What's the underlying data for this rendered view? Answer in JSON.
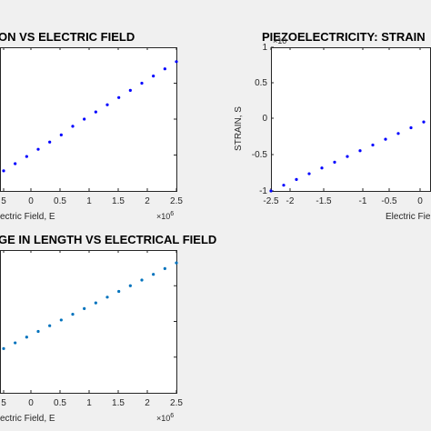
{
  "chart_data": [
    {
      "type": "scatter",
      "title": "ON VS ELECTRIC FIELD",
      "xlabel": "ectric Field, E",
      "x_exponent": "×10",
      "x_exponent_power": "6",
      "xticks": [
        "5",
        "0",
        "0.5",
        "1",
        "1.5",
        "2",
        "2.5"
      ],
      "xlim": [
        -0.5,
        2.5
      ],
      "x": [
        -0.5,
        -0.3,
        -0.1,
        0.1,
        0.3,
        0.5,
        0.7,
        0.9,
        1.1,
        1.3,
        1.5,
        1.7,
        1.9,
        2.1,
        2.3,
        2.5
      ],
      "y": [
        0.14,
        0.19,
        0.24,
        0.29,
        0.34,
        0.39,
        0.45,
        0.5,
        0.55,
        0.6,
        0.65,
        0.7,
        0.75,
        0.8,
        0.85,
        0.9
      ],
      "ylim": [
        0,
        1
      ],
      "color": "#0000ff"
    },
    {
      "type": "scatter",
      "title": "PIEZOELECTRICITY: STRAIN",
      "xlabel": "Electric Field",
      "ylabel": "STRAIN, S",
      "y_exponent": "×10",
      "xticks": [
        "-2.5",
        "-2",
        "-1.5",
        "-1",
        "-0.5",
        "0"
      ],
      "yticks": [
        "1",
        "0.5",
        "0",
        "-0.5",
        "-1"
      ],
      "xlim": [
        -2.5,
        0.3
      ],
      "ylim": [
        -1,
        1
      ],
      "x": [
        -2.5,
        -2.3,
        -2.1,
        -1.9,
        -1.7,
        -1.5,
        -1.3,
        -1.1,
        -0.9,
        -0.7,
        -0.5,
        -0.3,
        -0.1,
        0.1
      ],
      "y": [
        -1.0,
        -0.92,
        -0.84,
        -0.76,
        -0.68,
        -0.6,
        -0.52,
        -0.44,
        -0.36,
        -0.28,
        -0.2,
        -0.12,
        -0.04,
        0.04
      ],
      "color": "#0000ff"
    },
    {
      "type": "scatter",
      "title": "GE IN LENGTH VS ELECTRICAL FIELD",
      "xlabel": "ectric Field, E",
      "x_exponent": "×10",
      "x_exponent_power": "6",
      "xticks": [
        "5",
        "0",
        "0.5",
        "1",
        "1.5",
        "2",
        "2.5"
      ],
      "xlim": [
        -0.5,
        2.5
      ],
      "x": [
        -0.5,
        -0.3,
        -0.1,
        0.1,
        0.3,
        0.5,
        0.7,
        0.9,
        1.1,
        1.3,
        1.5,
        1.7,
        1.9,
        2.1,
        2.3,
        2.5
      ],
      "y": [
        0.31,
        0.35,
        0.39,
        0.43,
        0.47,
        0.51,
        0.55,
        0.59,
        0.63,
        0.67,
        0.71,
        0.75,
        0.79,
        0.83,
        0.87,
        0.91
      ],
      "ylim": [
        0,
        1
      ],
      "color": "#0072bd"
    }
  ]
}
